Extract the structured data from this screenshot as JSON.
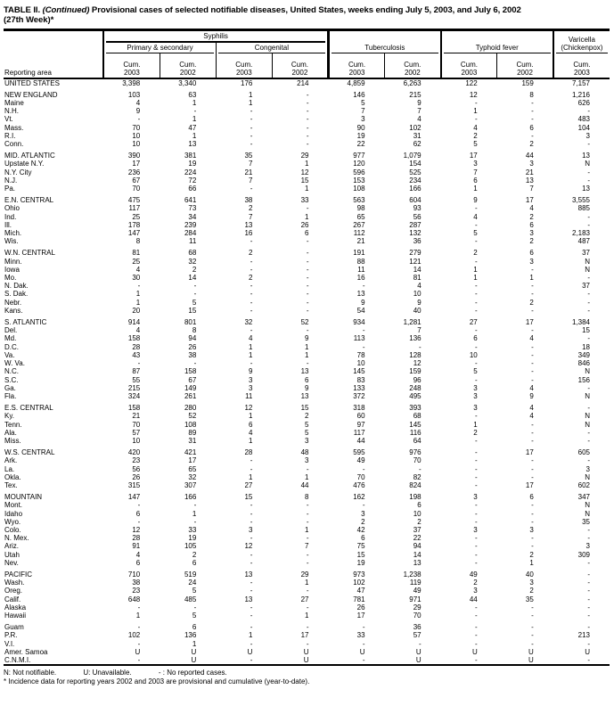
{
  "title": {
    "table_label": "TABLE II.",
    "continued": "(Continued)",
    "text": "Provisional cases of selected notifiable diseases, United States, weeks ending July 5, 2003, and July 6, 2002",
    "week": "(27th Week)*"
  },
  "table": {
    "header": {
      "reporting_area": "Reporting area",
      "syphilis": "Syphilis",
      "primary_secondary": "Primary & secondary",
      "congenital": "Congenital",
      "tuberculosis": "Tuberculosis",
      "typhoid_fever": "Typhoid fever",
      "varicella_line1": "Varicella",
      "varicella_line2": "(Chickenpox)",
      "columns": [
        {
          "label": "Cum.",
          "year": "2003"
        },
        {
          "label": "Cum.",
          "year": "2002"
        },
        {
          "label": "Cum.",
          "year": "2003"
        },
        {
          "label": "Cum.",
          "year": "2002"
        },
        {
          "label": "Cum.",
          "year": "2003"
        },
        {
          "label": "Cum.",
          "year": "2002"
        },
        {
          "label": "Cum.",
          "year": "2003"
        },
        {
          "label": "Cum.",
          "year": "2002"
        },
        {
          "label": "Cum.",
          "year": "2003"
        }
      ]
    },
    "sections": [
      {
        "rows": [
          [
            "UNITED STATES",
            "3,398",
            "3,340",
            "176",
            "214",
            "4,859",
            "6,263",
            "122",
            "159",
            "7,157"
          ]
        ]
      },
      {
        "rows": [
          [
            "NEW ENGLAND",
            "103",
            "63",
            "1",
            "-",
            "146",
            "215",
            "12",
            "8",
            "1,216"
          ],
          [
            "Maine",
            "4",
            "1",
            "1",
            "-",
            "5",
            "9",
            "-",
            "-",
            "626"
          ],
          [
            "N.H.",
            "9",
            "-",
            "-",
            "-",
            "7",
            "7",
            "1",
            "-",
            "-"
          ],
          [
            "Vt.",
            "-",
            "1",
            "-",
            "-",
            "3",
            "4",
            "-",
            "-",
            "483"
          ],
          [
            "Mass.",
            "70",
            "47",
            "-",
            "-",
            "90",
            "102",
            "4",
            "6",
            "104"
          ],
          [
            "R.I.",
            "10",
            "1",
            "-",
            "-",
            "19",
            "31",
            "2",
            "-",
            "3"
          ],
          [
            "Conn.",
            "10",
            "13",
            "-",
            "-",
            "22",
            "62",
            "5",
            "2",
            "-"
          ]
        ]
      },
      {
        "rows": [
          [
            "MID. ATLANTIC",
            "390",
            "381",
            "35",
            "29",
            "977",
            "1,079",
            "17",
            "44",
            "13"
          ],
          [
            "Upstate N.Y.",
            "17",
            "19",
            "7",
            "1",
            "120",
            "154",
            "3",
            "3",
            "N"
          ],
          [
            "N.Y. City",
            "236",
            "224",
            "21",
            "12",
            "596",
            "525",
            "7",
            "21",
            "-"
          ],
          [
            "N.J.",
            "67",
            "72",
            "7",
            "15",
            "153",
            "234",
            "6",
            "13",
            "-"
          ],
          [
            "Pa.",
            "70",
            "66",
            "-",
            "1",
            "108",
            "166",
            "1",
            "7",
            "13"
          ]
        ]
      },
      {
        "rows": [
          [
            "E.N. CENTRAL",
            "475",
            "641",
            "38",
            "33",
            "563",
            "604",
            "9",
            "17",
            "3,555"
          ],
          [
            "Ohio",
            "117",
            "73",
            "2",
            "-",
            "98",
            "93",
            "-",
            "4",
            "885"
          ],
          [
            "Ind.",
            "25",
            "34",
            "7",
            "1",
            "65",
            "56",
            "4",
            "2",
            "-"
          ],
          [
            "Ill.",
            "178",
            "239",
            "13",
            "26",
            "267",
            "287",
            "-",
            "6",
            "-"
          ],
          [
            "Mich.",
            "147",
            "284",
            "16",
            "6",
            "112",
            "132",
            "5",
            "3",
            "2,183"
          ],
          [
            "Wis.",
            "8",
            "11",
            "-",
            "-",
            "21",
            "36",
            "-",
            "2",
            "487"
          ]
        ]
      },
      {
        "rows": [
          [
            "W.N. CENTRAL",
            "81",
            "68",
            "2",
            "-",
            "191",
            "279",
            "2",
            "6",
            "37"
          ],
          [
            "Minn.",
            "25",
            "32",
            "-",
            "-",
            "88",
            "121",
            "-",
            "3",
            "N"
          ],
          [
            "Iowa",
            "4",
            "2",
            "-",
            "-",
            "11",
            "14",
            "1",
            "-",
            "N"
          ],
          [
            "Mo.",
            "30",
            "14",
            "2",
            "-",
            "16",
            "81",
            "1",
            "1",
            "-"
          ],
          [
            "N. Dak.",
            "-",
            "-",
            "-",
            "-",
            "-",
            "4",
            "-",
            "-",
            "37"
          ],
          [
            "S. Dak.",
            "1",
            "-",
            "-",
            "-",
            "13",
            "10",
            "-",
            "-",
            "-"
          ],
          [
            "Nebr.",
            "1",
            "5",
            "-",
            "-",
            "9",
            "9",
            "-",
            "2",
            "-"
          ],
          [
            "Kans.",
            "20",
            "15",
            "-",
            "-",
            "54",
            "40",
            "-",
            "-",
            "-"
          ]
        ]
      },
      {
        "rows": [
          [
            "S. ATLANTIC",
            "914",
            "801",
            "32",
            "52",
            "934",
            "1,281",
            "27",
            "17",
            "1,384"
          ],
          [
            "Del.",
            "4",
            "8",
            "-",
            "-",
            "-",
            "7",
            "-",
            "-",
            "15"
          ],
          [
            "Md.",
            "158",
            "94",
            "4",
            "9",
            "113",
            "136",
            "6",
            "4",
            "-"
          ],
          [
            "D.C.",
            "28",
            "26",
            "1",
            "1",
            "-",
            "-",
            "-",
            "-",
            "18"
          ],
          [
            "Va.",
            "43",
            "38",
            "1",
            "1",
            "78",
            "128",
            "10",
            "-",
            "349"
          ],
          [
            "W. Va.",
            "-",
            "-",
            "-",
            "-",
            "10",
            "12",
            "-",
            "-",
            "846"
          ],
          [
            "N.C.",
            "87",
            "158",
            "9",
            "13",
            "145",
            "159",
            "5",
            "-",
            "N"
          ],
          [
            "S.C.",
            "55",
            "67",
            "3",
            "6",
            "83",
            "96",
            "-",
            "-",
            "156"
          ],
          [
            "Ga.",
            "215",
            "149",
            "3",
            "9",
            "133",
            "248",
            "3",
            "4",
            "-"
          ],
          [
            "Fla.",
            "324",
            "261",
            "11",
            "13",
            "372",
            "495",
            "3",
            "9",
            "N"
          ]
        ]
      },
      {
        "rows": [
          [
            "E.S. CENTRAL",
            "158",
            "280",
            "12",
            "15",
            "318",
            "393",
            "3",
            "4",
            "-"
          ],
          [
            "Ky.",
            "21",
            "52",
            "1",
            "2",
            "60",
            "68",
            "-",
            "4",
            "N"
          ],
          [
            "Tenn.",
            "70",
            "108",
            "6",
            "5",
            "97",
            "145",
            "1",
            "-",
            "N"
          ],
          [
            "Ala.",
            "57",
            "89",
            "4",
            "5",
            "117",
            "116",
            "2",
            "-",
            "-"
          ],
          [
            "Miss.",
            "10",
            "31",
            "1",
            "3",
            "44",
            "64",
            "-",
            "-",
            "-"
          ]
        ]
      },
      {
        "rows": [
          [
            "W.S. CENTRAL",
            "420",
            "421",
            "28",
            "48",
            "595",
            "976",
            "-",
            "17",
            "605"
          ],
          [
            "Ark.",
            "23",
            "17",
            "-",
            "3",
            "49",
            "70",
            "-",
            "-",
            "-"
          ],
          [
            "La.",
            "56",
            "65",
            "-",
            "-",
            "-",
            "-",
            "-",
            "-",
            "3"
          ],
          [
            "Okla.",
            "26",
            "32",
            "1",
            "1",
            "70",
            "82",
            "-",
            "-",
            "N"
          ],
          [
            "Tex.",
            "315",
            "307",
            "27",
            "44",
            "476",
            "824",
            "-",
            "17",
            "602"
          ]
        ]
      },
      {
        "rows": [
          [
            "MOUNTAIN",
            "147",
            "166",
            "15",
            "8",
            "162",
            "198",
            "3",
            "6",
            "347"
          ],
          [
            "Mont.",
            "-",
            "-",
            "-",
            "-",
            "-",
            "6",
            "-",
            "-",
            "N"
          ],
          [
            "Idaho",
            "6",
            "1",
            "-",
            "-",
            "3",
            "10",
            "-",
            "-",
            "N"
          ],
          [
            "Wyo.",
            "-",
            "-",
            "-",
            "-",
            "2",
            "2",
            "-",
            "-",
            "35"
          ],
          [
            "Colo.",
            "12",
            "33",
            "3",
            "1",
            "42",
            "37",
            "3",
            "3",
            "-"
          ],
          [
            "N. Mex.",
            "28",
            "19",
            "-",
            "-",
            "6",
            "22",
            "-",
            "-",
            "-"
          ],
          [
            "Ariz.",
            "91",
            "105",
            "12",
            "7",
            "75",
            "94",
            "-",
            "-",
            "3"
          ],
          [
            "Utah",
            "4",
            "2",
            "-",
            "-",
            "15",
            "14",
            "-",
            "2",
            "309"
          ],
          [
            "Nev.",
            "6",
            "6",
            "-",
            "-",
            "19",
            "13",
            "-",
            "1",
            "-"
          ]
        ]
      },
      {
        "rows": [
          [
            "PACIFIC",
            "710",
            "519",
            "13",
            "29",
            "973",
            "1,238",
            "49",
            "40",
            "-"
          ],
          [
            "Wash.",
            "38",
            "24",
            "-",
            "1",
            "102",
            "119",
            "2",
            "3",
            "-"
          ],
          [
            "Oreg.",
            "23",
            "5",
            "-",
            "-",
            "47",
            "49",
            "3",
            "2",
            "-"
          ],
          [
            "Calif.",
            "648",
            "485",
            "13",
            "27",
            "781",
            "971",
            "44",
            "35",
            "-"
          ],
          [
            "Alaska",
            "-",
            "-",
            "-",
            "-",
            "26",
            "29",
            "-",
            "-",
            "-"
          ],
          [
            "Hawaii",
            "1",
            "5",
            "-",
            "1",
            "17",
            "70",
            "-",
            "-",
            "-"
          ]
        ]
      },
      {
        "rows": [
          [
            "Guam",
            "-",
            "6",
            "-",
            "-",
            "-",
            "36",
            "-",
            "-",
            "-"
          ],
          [
            "P.R.",
            "102",
            "136",
            "1",
            "17",
            "33",
            "57",
            "-",
            "-",
            "213"
          ],
          [
            "V.I.",
            "-",
            "1",
            "-",
            "-",
            "-",
            "-",
            "-",
            "-",
            "-"
          ],
          [
            "Amer. Samoa",
            "U",
            "U",
            "U",
            "U",
            "U",
            "U",
            "U",
            "U",
            "U"
          ],
          [
            "C.N.M.I.",
            "-",
            "U",
            "-",
            "U",
            "-",
            "U",
            "-",
            "U",
            "-"
          ]
        ]
      }
    ]
  },
  "footnotes": {
    "not_notifiable": "N: Not notifiable.",
    "unavailable": "U: Unavailable.",
    "no_cases": "- : No reported cases.",
    "incidence": "* Incidence data for reporting years 2002 and 2003 are provisional and cumulative (year-to-date)."
  }
}
